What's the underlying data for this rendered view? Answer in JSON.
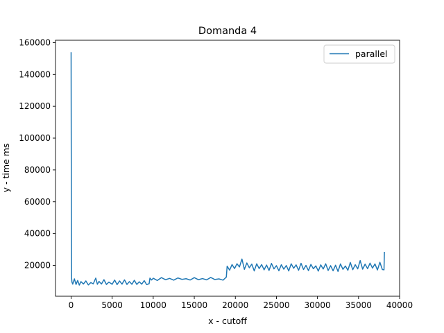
{
  "chart_data": {
    "type": "line",
    "title": "Domanda 4",
    "xlabel": "x - cutoff",
    "ylabel": "y - time ms",
    "xlim": [
      -1900,
      40000
    ],
    "ylim": [
      600,
      161500
    ],
    "xticks": [
      0,
      5000,
      10000,
      15000,
      20000,
      25000,
      30000,
      35000,
      40000
    ],
    "yticks": [
      20000,
      40000,
      60000,
      80000,
      100000,
      120000,
      140000,
      160000
    ],
    "grid": false,
    "legend_position": "top-right",
    "series": [
      {
        "name": "parallel",
        "color": "#1f77b4",
        "x": [
          0,
          10,
          30,
          60,
          100,
          200,
          400,
          600,
          800,
          1000,
          1200,
          1500,
          1800,
          2100,
          2400,
          2700,
          3000,
          3200,
          3400,
          3700,
          4000,
          4300,
          4600,
          5000,
          5300,
          5600,
          5900,
          6200,
          6500,
          6800,
          7100,
          7400,
          7700,
          8000,
          8300,
          8600,
          8900,
          9200,
          9500,
          9600,
          9800,
          10000,
          10500,
          11000,
          11500,
          12000,
          12500,
          13000,
          13500,
          14000,
          14500,
          15000,
          15500,
          16000,
          16500,
          17000,
          17500,
          18000,
          18500,
          18900,
          19000,
          19300,
          19600,
          19900,
          20200,
          20500,
          20800,
          21100,
          21400,
          21700,
          22000,
          22300,
          22600,
          22900,
          23200,
          23500,
          23800,
          24100,
          24400,
          24700,
          25000,
          25300,
          25600,
          25900,
          26200,
          26500,
          26800,
          27100,
          27400,
          27700,
          28000,
          28300,
          28600,
          28900,
          29200,
          29500,
          29800,
          30100,
          30400,
          30700,
          31000,
          31300,
          31600,
          31900,
          32200,
          32500,
          32800,
          33100,
          33400,
          33700,
          34000,
          34300,
          34600,
          34900,
          35200,
          35500,
          35800,
          36100,
          36400,
          36700,
          37000,
          37300,
          37600,
          37900,
          38100,
          38150
        ],
        "y": [
          154000,
          120000,
          60000,
          12000,
          9500,
          8200,
          11500,
          8000,
          10500,
          7600,
          9800,
          8300,
          10200,
          7700,
          9200,
          8400,
          12000,
          8100,
          9900,
          8300,
          11000,
          8000,
          9500,
          8100,
          10800,
          7900,
          10200,
          8200,
          10900,
          8000,
          9800,
          8100,
          10600,
          8000,
          9700,
          8200,
          10400,
          7900,
          8500,
          12000,
          10800,
          11900,
          10500,
          12300,
          11000,
          11800,
          10700,
          12100,
          11200,
          11600,
          10800,
          12300,
          11000,
          11700,
          10900,
          12400,
          11100,
          11500,
          10700,
          12600,
          19500,
          17000,
          20500,
          18000,
          21000,
          19000,
          24000,
          17500,
          21500,
          18500,
          20800,
          16500,
          21000,
          18000,
          20500,
          17200,
          20200,
          16800,
          21200,
          17800,
          19800,
          16600,
          20400,
          17600,
          19900,
          16500,
          21000,
          18200,
          20300,
          16900,
          21300,
          17400,
          20000,
          16700,
          20600,
          17900,
          19700,
          16400,
          20300,
          17700,
          21000,
          16800,
          19800,
          16600,
          20100,
          16200,
          20900,
          17500,
          19600,
          16900,
          21800,
          17300,
          20400,
          17800,
          23000,
          17600,
          20800,
          17900,
          21400,
          18300,
          20900,
          17100,
          21900,
          17400,
          17200,
          28500
        ]
      }
    ]
  }
}
